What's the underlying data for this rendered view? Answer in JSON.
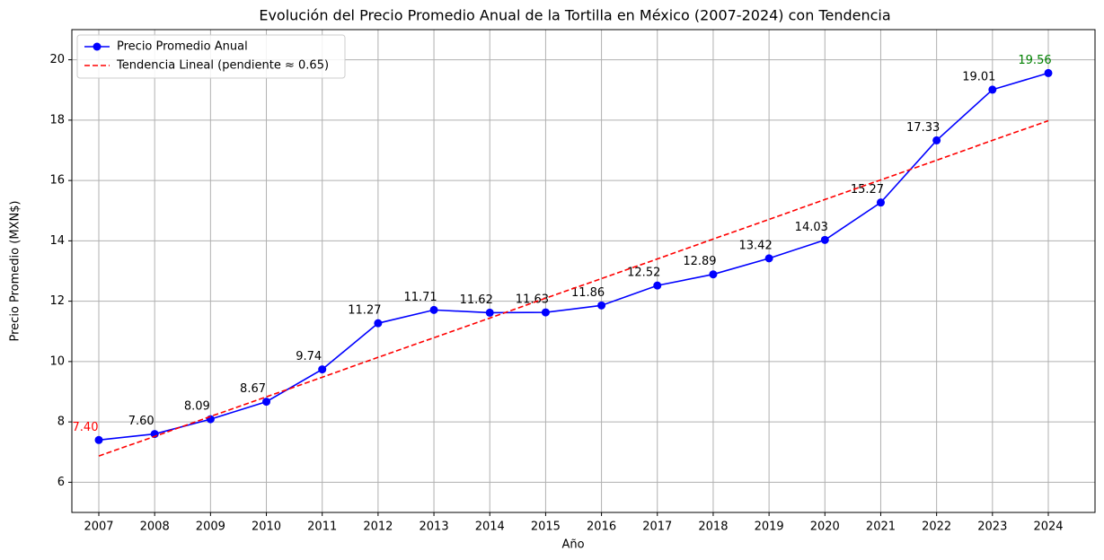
{
  "chart_data": {
    "type": "line",
    "title": "Evolución del Precio Promedio Anual de la Tortilla en México (2007-2024) con Tendencia",
    "x_label": "Año",
    "y_label": "Precio Promedio (MXN$)",
    "categories": [
      "2007",
      "2008",
      "2009",
      "2010",
      "2011",
      "2012",
      "2013",
      "2014",
      "2015",
      "2016",
      "2017",
      "2018",
      "2019",
      "2020",
      "2021",
      "2022",
      "2023",
      "2024"
    ],
    "series": [
      {
        "name": "Precio Promedio Anual",
        "color": "#0000ff",
        "style": "solid",
        "marker": true,
        "values": [
          7.4,
          7.6,
          8.09,
          8.67,
          9.74,
          11.27,
          11.71,
          11.62,
          11.63,
          11.86,
          12.52,
          12.89,
          13.42,
          14.03,
          15.27,
          17.33,
          19.01,
          19.56
        ],
        "value_labels": [
          "7.40",
          "7.60",
          "8.09",
          "8.67",
          "9.74",
          "11.27",
          "11.71",
          "11.62",
          "11.63",
          "11.86",
          "12.52",
          "12.89",
          "13.42",
          "14.03",
          "15.27",
          "17.33",
          "19.01",
          "19.56"
        ],
        "value_label_colors": [
          "#ff0000",
          "#000000",
          "#000000",
          "#000000",
          "#000000",
          "#000000",
          "#000000",
          "#000000",
          "#000000",
          "#000000",
          "#000000",
          "#000000",
          "#000000",
          "#000000",
          "#000000",
          "#000000",
          "#000000",
          "#008000"
        ]
      },
      {
        "name": "Tendencia Lineal (pendiente ≈ 0.65)",
        "color": "#ff0000",
        "style": "dashed",
        "marker": false,
        "values": [
          6.87,
          7.52,
          8.18,
          8.83,
          9.48,
          10.14,
          10.79,
          11.44,
          12.1,
          12.75,
          13.4,
          14.06,
          14.71,
          15.37,
          16.02,
          16.67,
          17.33,
          17.98
        ]
      }
    ],
    "ylim": [
      5,
      21
    ],
    "yticks": [
      6,
      8,
      10,
      12,
      14,
      16,
      18,
      20
    ],
    "grid": true,
    "legend": "upper left"
  }
}
